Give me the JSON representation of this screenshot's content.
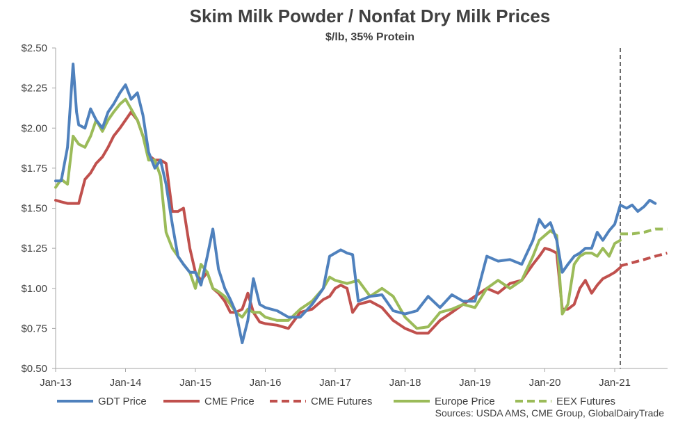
{
  "chart_data": {
    "type": "line",
    "title": "Skim Milk Powder / Nonfat Dry Milk Prices",
    "subtitle": "$/lb, 35% Protein",
    "source": "Sources:  USDA AMS, CME Group, GlobalDairyTrade",
    "ylim": [
      0.5,
      2.5
    ],
    "y_ticks": [
      "$0.50",
      "$0.75",
      "$1.00",
      "$1.25",
      "$1.50",
      "$1.75",
      "$2.00",
      "$2.25",
      "$2.50"
    ],
    "y_tick_values": [
      0.5,
      0.75,
      1.0,
      1.25,
      1.5,
      1.75,
      2.0,
      2.25,
      2.5
    ],
    "x_ticks": [
      "Jan-13",
      "Jan-14",
      "Jan-15",
      "Jan-16",
      "Jan-17",
      "Jan-18",
      "Jan-19",
      "Jan-20",
      "Jan-21"
    ],
    "x_tick_values": [
      2013,
      2014,
      2015,
      2016,
      2017,
      2018,
      2019,
      2020,
      2021
    ],
    "xlim": [
      2013,
      2021.75
    ],
    "vline_x": 2021.08,
    "legend_position": "bottom",
    "colors": {
      "gdt": "#4f81bd",
      "cme": "#c0504d",
      "europe": "#9bbb59",
      "axis": "#a6a6a6",
      "vline": "#404040"
    },
    "series": [
      {
        "name": "GDT Price",
        "key": "gdt",
        "dashed": false,
        "x": [
          2013.0,
          2013.08,
          2013.17,
          2013.25,
          2013.3,
          2013.33,
          2013.42,
          2013.5,
          2013.58,
          2013.67,
          2013.75,
          2013.83,
          2013.92,
          2014.0,
          2014.08,
          2014.17,
          2014.25,
          2014.33,
          2014.42,
          2014.5,
          2014.58,
          2014.67,
          2014.75,
          2014.83,
          2014.92,
          2015.0,
          2015.08,
          2015.17,
          2015.25,
          2015.33,
          2015.42,
          2015.5,
          2015.58,
          2015.67,
          2015.75,
          2015.83,
          2015.92,
          2016.0,
          2016.17,
          2016.33,
          2016.5,
          2016.67,
          2016.83,
          2016.92,
          2017.0,
          2017.08,
          2017.17,
          2017.25,
          2017.33,
          2017.5,
          2017.67,
          2017.83,
          2018.0,
          2018.17,
          2018.33,
          2018.5,
          2018.67,
          2018.83,
          2019.0,
          2019.08,
          2019.17,
          2019.33,
          2019.5,
          2019.67,
          2019.83,
          2019.92,
          2020.0,
          2020.08,
          2020.17,
          2020.25,
          2020.33,
          2020.42,
          2020.5,
          2020.58,
          2020.67,
          2020.75,
          2020.83,
          2020.92,
          2021.0,
          2021.08,
          2021.17,
          2021.25,
          2021.33,
          2021.42,
          2021.5,
          2021.58
        ],
        "y": [
          1.67,
          1.67,
          1.88,
          2.4,
          2.1,
          2.02,
          2.0,
          2.12,
          2.05,
          2.0,
          2.1,
          2.15,
          2.22,
          2.27,
          2.18,
          2.22,
          2.08,
          1.85,
          1.75,
          1.8,
          1.65,
          1.4,
          1.2,
          1.15,
          1.1,
          1.1,
          1.02,
          1.2,
          1.37,
          1.12,
          1.0,
          0.93,
          0.85,
          0.66,
          0.8,
          1.06,
          0.9,
          0.88,
          0.86,
          0.82,
          0.82,
          0.9,
          1.0,
          1.2,
          1.22,
          1.24,
          1.22,
          1.21,
          0.92,
          0.95,
          0.96,
          0.86,
          0.84,
          0.86,
          0.95,
          0.88,
          0.96,
          0.92,
          0.92,
          1.05,
          1.2,
          1.17,
          1.18,
          1.15,
          1.3,
          1.43,
          1.38,
          1.41,
          1.3,
          1.1,
          1.15,
          1.2,
          1.22,
          1.25,
          1.25,
          1.35,
          1.3,
          1.36,
          1.4,
          1.52,
          1.5,
          1.52,
          1.48,
          1.51,
          1.55,
          1.53
        ]
      },
      {
        "name": "CME Price",
        "key": "cme",
        "dashed": false,
        "x": [
          2013.0,
          2013.08,
          2013.17,
          2013.25,
          2013.33,
          2013.42,
          2013.5,
          2013.58,
          2013.67,
          2013.75,
          2013.83,
          2013.92,
          2014.0,
          2014.08,
          2014.17,
          2014.25,
          2014.33,
          2014.42,
          2014.5,
          2014.58,
          2014.67,
          2014.75,
          2014.83,
          2014.92,
          2015.0,
          2015.08,
          2015.17,
          2015.25,
          2015.33,
          2015.42,
          2015.5,
          2015.58,
          2015.67,
          2015.75,
          2015.83,
          2015.92,
          2016.0,
          2016.17,
          2016.33,
          2016.5,
          2016.67,
          2016.83,
          2016.92,
          2017.0,
          2017.08,
          2017.17,
          2017.25,
          2017.33,
          2017.5,
          2017.67,
          2017.83,
          2018.0,
          2018.17,
          2018.33,
          2018.5,
          2018.67,
          2018.83,
          2019.0,
          2019.17,
          2019.33,
          2019.5,
          2019.67,
          2019.83,
          2019.92,
          2020.0,
          2020.08,
          2020.17,
          2020.25,
          2020.33,
          2020.42,
          2020.5,
          2020.58,
          2020.67,
          2020.75,
          2020.83,
          2020.92,
          2021.0,
          2021.08
        ],
        "y": [
          1.55,
          1.54,
          1.53,
          1.53,
          1.53,
          1.68,
          1.72,
          1.78,
          1.82,
          1.88,
          1.95,
          2.0,
          2.05,
          2.1,
          2.05,
          1.95,
          1.83,
          1.8,
          1.8,
          1.78,
          1.48,
          1.48,
          1.5,
          1.25,
          1.1,
          1.05,
          1.1,
          1.0,
          0.97,
          0.92,
          0.85,
          0.85,
          0.87,
          0.97,
          0.85,
          0.79,
          0.78,
          0.77,
          0.75,
          0.85,
          0.87,
          0.93,
          0.95,
          1.0,
          1.02,
          1.0,
          0.85,
          0.9,
          0.92,
          0.88,
          0.8,
          0.75,
          0.72,
          0.72,
          0.8,
          0.85,
          0.9,
          0.95,
          1.0,
          0.97,
          1.03,
          1.05,
          1.15,
          1.2,
          1.25,
          1.24,
          1.22,
          0.87,
          0.87,
          0.9,
          1.0,
          1.05,
          0.97,
          1.02,
          1.06,
          1.08,
          1.1,
          1.13
        ]
      },
      {
        "name": "CME Futures",
        "key": "cme",
        "dashed": true,
        "x": [
          2021.08,
          2021.25,
          2021.42,
          2021.58,
          2021.75
        ],
        "y": [
          1.14,
          1.16,
          1.18,
          1.2,
          1.22
        ]
      },
      {
        "name": "Europe Price",
        "key": "europe",
        "dashed": false,
        "x": [
          2013.0,
          2013.08,
          2013.17,
          2013.25,
          2013.33,
          2013.42,
          2013.5,
          2013.58,
          2013.67,
          2013.75,
          2013.83,
          2013.92,
          2014.0,
          2014.08,
          2014.17,
          2014.25,
          2014.33,
          2014.42,
          2014.5,
          2014.58,
          2014.67,
          2014.75,
          2014.83,
          2014.92,
          2015.0,
          2015.08,
          2015.17,
          2015.25,
          2015.33,
          2015.42,
          2015.5,
          2015.58,
          2015.67,
          2015.75,
          2015.83,
          2015.92,
          2016.0,
          2016.17,
          2016.33,
          2016.5,
          2016.67,
          2016.83,
          2016.92,
          2017.0,
          2017.17,
          2017.33,
          2017.5,
          2017.67,
          2017.83,
          2018.0,
          2018.17,
          2018.33,
          2018.5,
          2018.67,
          2018.83,
          2019.0,
          2019.17,
          2019.33,
          2019.5,
          2019.67,
          2019.83,
          2019.92,
          2020.0,
          2020.08,
          2020.17,
          2020.25,
          2020.33,
          2020.42,
          2020.5,
          2020.58,
          2020.67,
          2020.75,
          2020.83,
          2020.92,
          2021.0,
          2021.08
        ],
        "y": [
          1.63,
          1.68,
          1.65,
          1.95,
          1.9,
          1.88,
          1.95,
          2.05,
          1.98,
          2.05,
          2.1,
          2.15,
          2.18,
          2.12,
          2.05,
          1.95,
          1.8,
          1.8,
          1.7,
          1.35,
          1.25,
          1.2,
          1.15,
          1.1,
          1.0,
          1.15,
          1.1,
          1.0,
          0.98,
          0.95,
          0.9,
          0.85,
          0.82,
          0.87,
          0.85,
          0.85,
          0.82,
          0.8,
          0.8,
          0.87,
          0.92,
          1.0,
          1.07,
          1.05,
          1.03,
          1.05,
          0.95,
          1.0,
          0.95,
          0.82,
          0.75,
          0.76,
          0.85,
          0.87,
          0.9,
          0.88,
          1.0,
          1.05,
          1.0,
          1.05,
          1.2,
          1.3,
          1.33,
          1.36,
          1.33,
          0.84,
          0.9,
          1.15,
          1.2,
          1.22,
          1.22,
          1.2,
          1.25,
          1.2,
          1.28,
          1.3
        ]
      },
      {
        "name": "EEX Futures",
        "key": "europe",
        "dashed": true,
        "x": [
          2021.08,
          2021.25,
          2021.42,
          2021.58,
          2021.75
        ],
        "y": [
          1.34,
          1.34,
          1.35,
          1.37,
          1.37
        ]
      }
    ]
  }
}
